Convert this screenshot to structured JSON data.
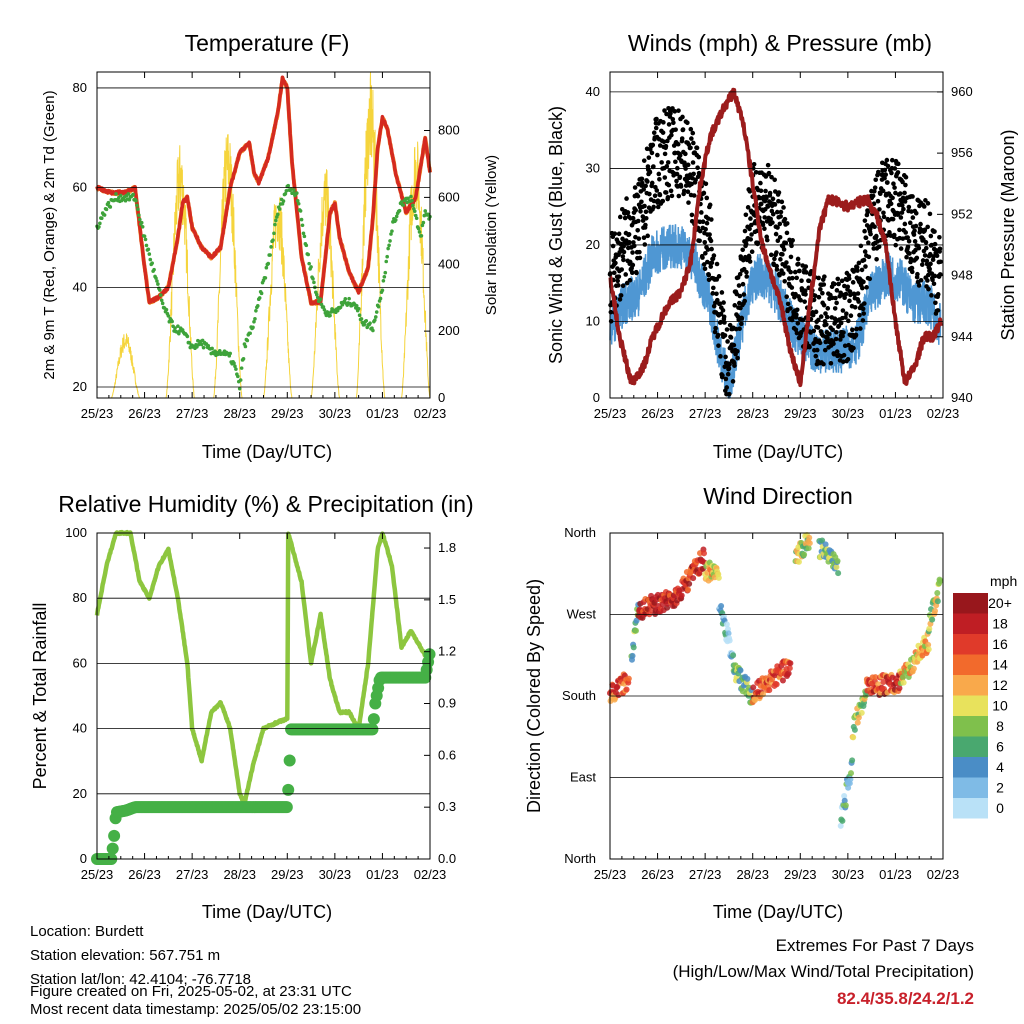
{
  "info": {
    "location": "Location: Burdett",
    "elevation": "Station elevation: 567.751 m",
    "latlon": "Station lat/lon: 42.4104; -76.7718",
    "created": "Figure created on Fri, 2025-05-02, at 23:31 UTC",
    "recent": "Most recent data timestamp: 2025/05/02 23:15:00",
    "extremes_title": "Extremes For Past 7 Days",
    "extremes_sub": "(High/Low/Max Wind/Total Precipitation)",
    "extremes_value": "82.4/35.8/24.2/1.2",
    "extremes_color": "#c8202a"
  },
  "chart_data": [
    {
      "type": "line",
      "title": "Temperature (F)",
      "xlabel": "Time (Day/UTC)",
      "ylabel": "2m & 9m T (Red, Orange) & 2m Td (Green)",
      "ylabel_right": "Solar Insolation (Yellow)",
      "x_ticks": [
        "25/23",
        "26/23",
        "27/23",
        "28/23",
        "29/23",
        "30/23",
        "01/23",
        "02/23"
      ],
      "xlim": [
        0,
        7
      ],
      "ylim": [
        17.8,
        83.2
      ],
      "y_ticks": [
        20,
        40,
        60,
        80
      ],
      "ylim_right": [
        0,
        975
      ],
      "y_ticks_right": [
        0,
        200,
        400,
        600,
        800
      ],
      "series": [
        {
          "name": "2m T",
          "color": "#d42a20",
          "axis": "left",
          "x": [
            0,
            0.3,
            0.6,
            0.8,
            0.9,
            1.0,
            1.1,
            1.3,
            1.5,
            1.7,
            1.8,
            1.9,
            2.0,
            2.2,
            2.4,
            2.6,
            2.8,
            3.0,
            3.2,
            3.3,
            3.4,
            3.6,
            3.8,
            3.9,
            4.0,
            4.1,
            4.3,
            4.5,
            4.7,
            4.9,
            5.0,
            5.1,
            5.3,
            5.5,
            5.7,
            5.8,
            5.9,
            6.0,
            6.1,
            6.3,
            6.5,
            6.7,
            6.9,
            7.0
          ],
          "y": [
            60,
            59,
            59,
            60,
            52,
            44,
            37,
            38,
            40,
            50,
            57,
            58,
            52,
            48,
            46,
            48,
            60,
            67,
            69,
            63,
            61,
            66,
            75,
            82,
            80,
            65,
            46,
            37,
            37,
            55,
            57,
            50,
            43,
            39,
            44,
            54,
            68,
            74,
            72,
            62,
            55,
            58,
            70,
            63
          ]
        },
        {
          "name": "2m Td",
          "color": "#3ea33a",
          "axis": "left",
          "x": [
            0,
            0.2,
            0.4,
            0.8,
            1.0,
            1.2,
            1.4,
            1.6,
            1.8,
            2.0,
            2.2,
            2.4,
            2.6,
            2.8,
            2.9,
            3.0,
            3.1,
            3.3,
            3.6,
            3.8,
            4.0,
            4.2,
            4.4,
            4.6,
            4.8,
            5.0,
            5.2,
            5.4,
            5.6,
            5.8,
            6.0,
            6.2,
            6.4,
            6.6,
            6.8,
            6.9,
            7.0
          ],
          "y": [
            52,
            56,
            58,
            58,
            50,
            43,
            36,
            32,
            31,
            28,
            29,
            27,
            27,
            26,
            24,
            20,
            28,
            33,
            45,
            55,
            60,
            59,
            48,
            39,
            35,
            35,
            37,
            37,
            33,
            32,
            40,
            52,
            57,
            58,
            50,
            55,
            54
          ]
        },
        {
          "name": "Solar Insolation",
          "color": "#f5d43c",
          "axis": "right",
          "peak_times": [
            0.6,
            1.75,
            2.75,
            3.8,
            4.8,
            5.75,
            6.7
          ],
          "peak_values": [
            200,
            770,
            820,
            650,
            700,
            975,
            800
          ]
        }
      ]
    },
    {
      "type": "scatter",
      "title": "Winds (mph) & Pressure (mb)",
      "xlabel": "Time (Day/UTC)",
      "ylabel": "Sonic Wind & Gust (Blue, Black)",
      "ylabel_right": "Station Pressure (Maroon)",
      "x_ticks": [
        "25/23",
        "26/23",
        "27/23",
        "28/23",
        "29/23",
        "30/23",
        "01/23",
        "02/23"
      ],
      "xlim": [
        0,
        7
      ],
      "ylim": [
        0,
        42.6
      ],
      "y_ticks": [
        0,
        10,
        20,
        30,
        40
      ],
      "ylim_right": [
        940,
        961.3
      ],
      "y_ticks_right": [
        940,
        944,
        948,
        952,
        956,
        960
      ],
      "series": [
        {
          "name": "Gust",
          "color": "#000000",
          "x": [
            0,
            0.3,
            0.6,
            0.9,
            1.2,
            1.5,
            1.8,
            2.1,
            2.3,
            2.5,
            2.7,
            2.9,
            3.1,
            3.3,
            3.5,
            3.7,
            3.9,
            4.1,
            4.3,
            4.6,
            4.9,
            5.2,
            5.5,
            5.8,
            6.1,
            6.4,
            6.7,
            6.95
          ],
          "y": [
            15,
            20,
            22,
            30,
            32,
            32,
            28,
            20,
            10,
            3,
            12,
            22,
            26,
            25,
            22,
            18,
            14,
            12,
            10,
            10,
            10,
            12,
            22,
            26,
            25,
            20,
            20,
            15
          ]
        },
        {
          "name": "Wind",
          "color": "#4f97d3",
          "ratio_of_gust": 0.62
        },
        {
          "name": "Pressure",
          "color": "#9b1c1c",
          "x": [
            0,
            0.2,
            0.45,
            0.7,
            0.9,
            1.2,
            1.5,
            1.7,
            1.9,
            2.1,
            2.4,
            2.6,
            2.8,
            3.0,
            3.2,
            3.4,
            3.6,
            3.8,
            4.0,
            4.2,
            4.4,
            4.6,
            5.0,
            5.4,
            5.6,
            5.8,
            6.0,
            6.2,
            6.4,
            6.6,
            6.8,
            6.95
          ],
          "y": [
            948,
            944,
            941,
            942,
            944,
            946,
            947,
            949,
            954,
            957,
            959,
            960,
            958,
            954,
            950,
            948,
            946,
            943,
            941,
            946,
            951,
            953,
            952.5,
            953,
            952,
            950,
            945,
            941,
            942,
            944,
            944,
            945
          ]
        }
      ]
    },
    {
      "type": "line",
      "title": "Relative Humidity (%) & Precipitation (in)",
      "xlabel": "Time (Day/UTC)",
      "ylabel": "Percent & Total Rainfall",
      "x_ticks": [
        "25/23",
        "26/23",
        "27/23",
        "28/23",
        "29/23",
        "30/23",
        "01/23",
        "02/23"
      ],
      "xlim": [
        0,
        7
      ],
      "ylim": [
        0,
        100
      ],
      "y_ticks": [
        0,
        20,
        40,
        60,
        80,
        100
      ],
      "ylim_right": [
        0,
        1.887
      ],
      "y_ticks_right": [
        "0.0",
        "0.3",
        "0.6",
        "0.9",
        "1.2",
        "1.5",
        "1.8"
      ],
      "series": [
        {
          "name": "Relative Humidity",
          "color": "#8dc63f",
          "axis": "left",
          "x": [
            0,
            0.2,
            0.4,
            0.7,
            0.9,
            1.1,
            1.3,
            1.5,
            1.7,
            1.9,
            2.0,
            2.2,
            2.4,
            2.6,
            2.8,
            3.0,
            3.1,
            3.3,
            3.5,
            3.8,
            4.0,
            4.02,
            4.3,
            4.5,
            4.7,
            4.9,
            5.1,
            5.3,
            5.5,
            5.7,
            5.9,
            6.0,
            6.2,
            6.4,
            6.6,
            6.8,
            7.0
          ],
          "y": [
            75,
            90,
            100,
            100,
            85,
            80,
            90,
            95,
            80,
            60,
            40,
            30,
            45,
            48,
            40,
            20,
            17,
            30,
            40,
            42,
            43,
            100,
            85,
            60,
            75,
            55,
            45,
            45,
            40,
            60,
            95,
            100,
            90,
            65,
            70,
            65,
            60
          ]
        },
        {
          "name": "Total Precipitation",
          "color": "#45b046",
          "axis": "right",
          "x": [
            0,
            0.3,
            0.35,
            0.4,
            0.6,
            0.8,
            4.0,
            4.03,
            4.08,
            5.8,
            5.85,
            5.95,
            6.9,
            7.0
          ],
          "y": [
            0,
            0,
            0.1,
            0.27,
            0.28,
            0.3,
            0.3,
            0.45,
            0.75,
            0.75,
            0.9,
            1.05,
            1.05,
            1.2
          ]
        }
      ]
    },
    {
      "type": "scatter",
      "title": "Wind Direction",
      "xlabel": "Time (Day/UTC)",
      "ylabel": "Direction (Colored By Speed)",
      "x_ticks": [
        "25/23",
        "26/23",
        "27/23",
        "28/23",
        "29/23",
        "30/23",
        "01/23",
        "02/23"
      ],
      "xlim": [
        0,
        7
      ],
      "ylim": [
        0,
        360
      ],
      "y_ticks": [
        "North",
        "East",
        "South",
        "West",
        "North"
      ],
      "legend_title": "mph",
      "legend_labels": [
        "20+",
        "18",
        "16",
        "14",
        "12",
        "10",
        "8",
        "6",
        "4",
        "2",
        "0"
      ],
      "legend_colors": [
        "#98171c",
        "#bf1e24",
        "#e03a2a",
        "#f26a2c",
        "#f9a94b",
        "#e8e25c",
        "#7fc04c",
        "#49a86f",
        "#4a8dc6",
        "#7fbbe6",
        "#b9e1f7"
      ],
      "segments": [
        {
          "t": [
            0,
            0.4
          ],
          "dir": [
            180,
            200
          ],
          "speed": 16
        },
        {
          "t": [
            0.45,
            0.6
          ],
          "dir": [
            220,
            280
          ],
          "speed": 8
        },
        {
          "t": [
            0.6,
            1.4
          ],
          "dir": [
            275,
            290
          ],
          "speed": 19
        },
        {
          "t": [
            1.4,
            2.0
          ],
          "dir": [
            290,
            335
          ],
          "speed": 18
        },
        {
          "t": [
            2.0,
            2.3
          ],
          "dir": [
            320,
            310
          ],
          "speed": 12
        },
        {
          "t": [
            2.3,
            2.6
          ],
          "dir": [
            280,
            220
          ],
          "speed": 4
        },
        {
          "t": [
            2.6,
            3.0
          ],
          "dir": [
            210,
            180
          ],
          "speed": 8
        },
        {
          "t": [
            3.0,
            3.8
          ],
          "dir": [
            180,
            215
          ],
          "speed": 16
        },
        {
          "t": [
            3.9,
            4.2
          ],
          "dir": [
            330,
            355
          ],
          "speed": 10
        },
        {
          "t": [
            4.4,
            4.8
          ],
          "dir": [
            345,
            320
          ],
          "speed": 8
        },
        {
          "t": [
            4.85,
            5.1
          ],
          "dir": [
            40,
            110
          ],
          "speed": 5
        },
        {
          "t": [
            5.1,
            5.4
          ],
          "dir": [
            140,
            190
          ],
          "speed": 10
        },
        {
          "t": [
            5.4,
            6.1
          ],
          "dir": [
            190,
            195
          ],
          "speed": 17
        },
        {
          "t": [
            6.1,
            6.7
          ],
          "dir": [
            200,
            240
          ],
          "speed": 12
        },
        {
          "t": [
            6.7,
            6.95
          ],
          "dir": [
            260,
            305
          ],
          "speed": 10
        }
      ]
    }
  ]
}
